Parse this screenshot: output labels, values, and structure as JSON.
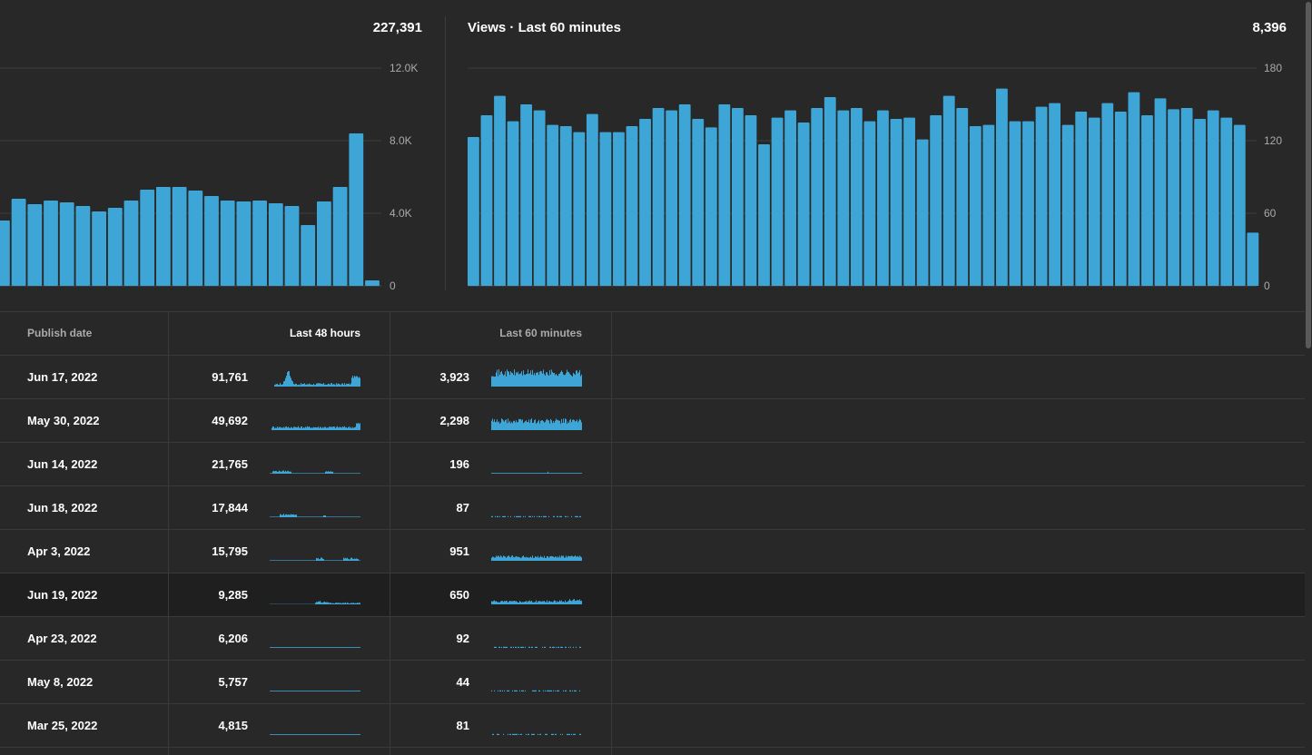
{
  "left_chart": {
    "total": "227,391",
    "y_ticks": [
      "12.0K",
      "8.0K",
      "4.0K",
      "0"
    ]
  },
  "right_chart": {
    "title": "Views · Last 60 minutes",
    "total": "8,396",
    "y_ticks": [
      "180",
      "120",
      "60",
      "0"
    ]
  },
  "chart_data": [
    {
      "type": "bar",
      "title": "",
      "ylim": [
        0,
        12000
      ],
      "y_ticks": [
        0,
        4000,
        8000,
        12000
      ],
      "grid": true,
      "values": [
        3600,
        4800,
        4500,
        4700,
        4600,
        4400,
        4100,
        4300,
        4700,
        5300,
        5450,
        5450,
        5250,
        4950,
        4700,
        4650,
        4700,
        4550,
        4400,
        3350,
        4650,
        5450,
        8400,
        300
      ]
    },
    {
      "type": "bar",
      "title": "Views · Last 60 minutes",
      "ylim": [
        0,
        180
      ],
      "y_ticks": [
        0,
        60,
        120,
        180
      ],
      "grid": true,
      "values": [
        123,
        141,
        157,
        136,
        150,
        145,
        133,
        132,
        127,
        142,
        127,
        127,
        132,
        138,
        147,
        145,
        150,
        138,
        131,
        150,
        147,
        141,
        117,
        139,
        145,
        135,
        147,
        156,
        145,
        147,
        136,
        145,
        138,
        139,
        121,
        141,
        157,
        147,
        132,
        133,
        163,
        136,
        136,
        148,
        151,
        133,
        144,
        139,
        151,
        144,
        160,
        141,
        155,
        146,
        147,
        138,
        145,
        139,
        133,
        44
      ]
    }
  ],
  "table": {
    "headers": {
      "publish_date": "Publish date",
      "last48": "Last 48 hours",
      "last60": "Last 60 minutes"
    },
    "rows": [
      {
        "date": "Jun 17, 2022",
        "views48": "91,761",
        "views60": "3,923",
        "s48": "big-spike",
        "s60": "full-high"
      },
      {
        "date": "May 30, 2022",
        "views48": "49,692",
        "views60": "2,298",
        "s48": "rising",
        "s60": "full-mid"
      },
      {
        "date": "Jun 14, 2022",
        "views48": "21,765",
        "views60": "196",
        "s48": "early-bump",
        "s60": "flat-low"
      },
      {
        "date": "Jun 18, 2022",
        "views48": "17,844",
        "views60": "87",
        "s48": "early-only",
        "s60": "sparse"
      },
      {
        "date": "Apr 3, 2022",
        "views48": "15,795",
        "views60": "951",
        "s48": "late-bump",
        "s60": "full-low"
      },
      {
        "date": "Jun 19, 2022",
        "views48": "9,285",
        "views60": "650",
        "s48": "late-start",
        "s60": "full-low2"
      },
      {
        "date": "Apr 23, 2022",
        "views48": "6,206",
        "views60": "92",
        "s48": "flat",
        "s60": "sparse"
      },
      {
        "date": "May 8, 2022",
        "views48": "5,757",
        "views60": "44",
        "s48": "flat",
        "s60": "sparse"
      },
      {
        "date": "Mar 25, 2022",
        "views48": "4,815",
        "views60": "81",
        "s48": "flat",
        "s60": "sparse"
      }
    ]
  },
  "colors": {
    "bar": "#3ea6d6",
    "background": "#282828"
  }
}
